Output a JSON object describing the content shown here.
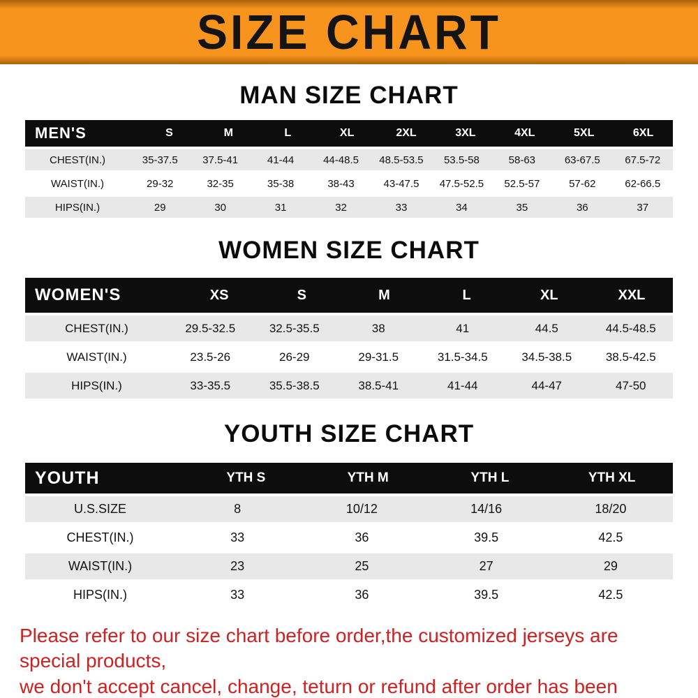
{
  "banner": {
    "title": "SIZE CHART"
  },
  "colors": {
    "banner_orange": "#F6941E",
    "header_black": "#0d0d0d",
    "row_gray": "#e8e8e8",
    "footer_red": "#CC2222",
    "title_black": "#141414"
  },
  "sections": [
    {
      "heading": "MAN SIZE CHART",
      "table": {
        "header_label": "MEN'S",
        "columns": [
          "S",
          "M",
          "L",
          "XL",
          "2XL",
          "3XL",
          "4XL",
          "5XL",
          "6XL"
        ],
        "rows": [
          {
            "label": "CHEST(IN.)",
            "values": [
              "35-37.5",
              "37.5-41",
              "41-44",
              "44-48.5",
              "48.5-53.5",
              "53.5-58",
              "58-63",
              "63-67.5",
              "67.5-72"
            ]
          },
          {
            "label": "WAIST(IN.)",
            "values": [
              "29-32",
              "32-35",
              "35-38",
              "38-43",
              "43-47.5",
              "47.5-52.5",
              "52.5-57",
              "57-62",
              "62-66.5"
            ]
          },
          {
            "label": "HIPS(IN.)",
            "values": [
              "29",
              "30",
              "31",
              "32",
              "33",
              "34",
              "35",
              "36",
              "37"
            ]
          }
        ]
      }
    },
    {
      "heading": "WOMEN SIZE CHART",
      "table": {
        "header_label": "WOMEN'S",
        "columns": [
          "XS",
          "S",
          "M",
          "L",
          "XL",
          "XXL"
        ],
        "rows": [
          {
            "label": "CHEST(IN.)",
            "values": [
              "29.5-32.5",
              "32.5-35.5",
              "38",
              "41",
              "44.5",
              "44.5-48.5"
            ]
          },
          {
            "label": "WAIST(IN.)",
            "values": [
              "23.5-26",
              "26-29",
              "29-31.5",
              "31.5-34.5",
              "34.5-38.5",
              "38.5-42.5"
            ]
          },
          {
            "label": "HIPS(IN.)",
            "values": [
              "33-35.5",
              "35.5-38.5",
              "38.5-41",
              "41-44",
              "44-47",
              "47-50"
            ]
          }
        ]
      }
    },
    {
      "heading": "YOUTH SIZE CHART",
      "table": {
        "header_label": "YOUTH",
        "columns": [
          "YTH S",
          "YTH M",
          "YTH L",
          "YTH XL"
        ],
        "rows": [
          {
            "label": "U.S.SIZE",
            "values": [
              "8",
              "10/12",
              "14/16",
              "18/20"
            ]
          },
          {
            "label": "CHEST(IN.)",
            "values": [
              "33",
              "36",
              "39.5",
              "42.5"
            ]
          },
          {
            "label": "WAIST(IN.)",
            "values": [
              "23",
              "25",
              "27",
              "29"
            ]
          },
          {
            "label": "HIPS(IN.)",
            "values": [
              "33",
              "36",
              "39.5",
              "42.5"
            ]
          }
        ]
      }
    }
  ],
  "footer": {
    "line1": "Please refer to our size chart before order,the customized jerseys are special products,",
    "line2": "we don't accept cancel, change, teturn or refund after order has been placed!"
  }
}
